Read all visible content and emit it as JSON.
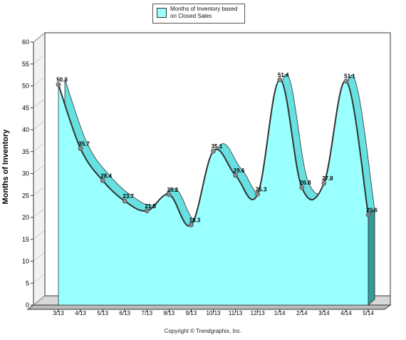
{
  "chart_data": {
    "type": "area",
    "categories": [
      "3/13",
      "4/13",
      "5/13",
      "6/13",
      "7/13",
      "8/13",
      "9/13",
      "10/13",
      "11/13",
      "12/13",
      "1/14",
      "2/14",
      "3/14",
      "4/14",
      "5/14"
    ],
    "series": [
      {
        "name": "Months of Inventory based on Closed Sales",
        "values": [
          50.3,
          35.7,
          28.4,
          23.7,
          21.5,
          25.2,
          18.3,
          35.1,
          29.6,
          25.3,
          51.4,
          26.8,
          27.8,
          51.1,
          20.6
        ]
      }
    ],
    "data_labels": [
      "50.3",
      "35.7",
      "28.4",
      "23.7",
      "21.5",
      "25.2",
      "18.3",
      "35.1",
      "29.6",
      "25.3",
      "51.4",
      "26.8",
      "27.8",
      "51.1",
      "20.6"
    ],
    "yticks": [
      "0",
      "5",
      "10",
      "15",
      "20",
      "25",
      "30",
      "35",
      "40",
      "45",
      "50",
      "55",
      "60"
    ],
    "ylabel": "Months of Inventory",
    "xlabel": "",
    "ylim": [
      0,
      60
    ],
    "legend_position": "top-center",
    "grid": false,
    "colors": {
      "area_fill": "#99ffff",
      "area_top": "#66e0e0",
      "area_dark": "#339999",
      "curve": "#333333",
      "marker": "#888888"
    }
  },
  "legend": {
    "label_line1": "Months of Inventory based",
    "label_line2": "on Closed Sales"
  },
  "copyright": "Copyright © Trendgraphix, Inc."
}
